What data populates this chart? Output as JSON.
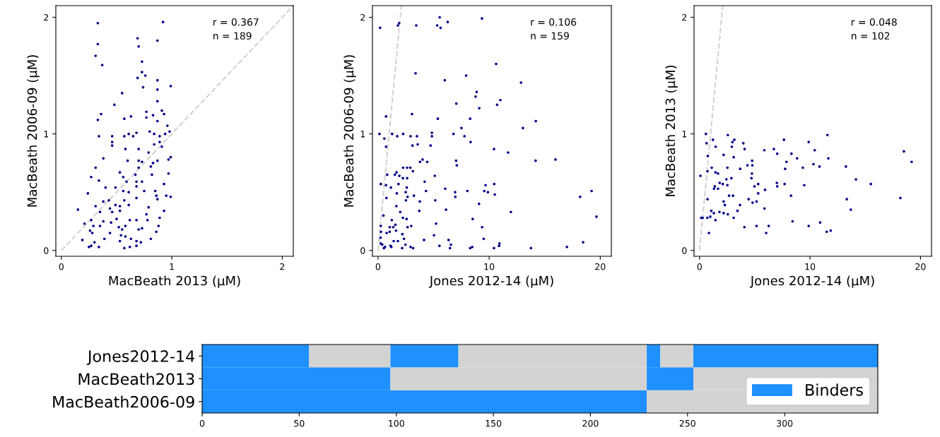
{
  "chart_data": [
    {
      "type": "scatter",
      "xlabel": "MacBeath 2013 (μM)",
      "ylabel": "MacBeath 2006-09 (μM)",
      "xlim": [
        -0.05,
        2.1
      ],
      "ylim": [
        -0.05,
        2.1
      ],
      "xticks": [
        0,
        1,
        2
      ],
      "yticks": [
        0,
        1,
        2
      ],
      "grid": false,
      "annotations": [
        "r = 0.367",
        "n = 189"
      ],
      "series": [
        {
          "type": "scatter",
          "marker": "circle",
          "color": "#00008b",
          "x": [
            0.33,
            0.92,
            0.33,
            0.69,
            0.87,
            0.7,
            0.31,
            0.37,
            0.73,
            0.73,
            0.69,
            0.76,
            0.87,
            0.99,
            0.74,
            0.87,
            0.55,
            0.48,
            0.87,
            0.36,
            0.33,
            0.57,
            0.63,
            0.77,
            0.77,
            0.83,
            0.91,
            0.93,
            0.87,
            0.96,
            0.34,
            0.46,
            0.46,
            0.46,
            0.57,
            0.61,
            0.65,
            0.68,
            0.8,
            0.84,
            0.89,
            0.94,
            0.98,
            0.89,
            0.84,
            0.7,
            0.58,
            0.79,
            0.91,
            0.38,
            0.6,
            0.7,
            0.73,
            0.83,
            0.87,
            0.97,
            0.99,
            0.31,
            0.81,
            0.7,
            0.53,
            0.82,
            0.97,
            0.67,
            0.27,
            0.34,
            0.56,
            0.59,
            0.68,
            0.73,
            0.4,
            0.49,
            0.68,
            0.93,
            0.24,
            0.56,
            0.61,
            0.75,
            0.85,
            0.86,
            0.95,
            0.99,
            0.68,
            0.57,
            0.38,
            0.43,
            0.87,
            0.15,
            0.31,
            0.49,
            0.53,
            0.61,
            0.79,
            0.35,
            0.44,
            0.46,
            0.93,
            0.53,
            0.77,
            0.5,
            0.62,
            0.68,
            0.78,
            0.89,
            0.21,
            0.27,
            0.38,
            0.45,
            0.29,
            0.35,
            0.52,
            0.58,
            0.73,
            0.88,
            0.26,
            0.44,
            0.55,
            0.7,
            0.86,
            0.28,
            0.54,
            0.19,
            0.3,
            0.39,
            0.53,
            0.58,
            0.63,
            0.68,
            0.81,
            0.25,
            0.27,
            0.34,
            0.57,
            0.62,
            0.68,
            0.72
          ],
          "values": [
            1.95,
            1.96,
            1.77,
            1.82,
            1.8,
            1.75,
            1.67,
            1.59,
            1.62,
            1.53,
            1.48,
            1.5,
            1.46,
            1.41,
            1.4,
            1.38,
            1.35,
            1.25,
            1.28,
            1.17,
            1.12,
            1.13,
            1.15,
            1.19,
            1.14,
            1.16,
            1.2,
            1.17,
            1.11,
            1.07,
            0.98,
            0.98,
            0.93,
            0.9,
            0.98,
            1.0,
            0.98,
            1.01,
            1.02,
            1.0,
            0.98,
            1.0,
            1.02,
            0.93,
            0.91,
            0.87,
            0.87,
            0.84,
            0.89,
            0.79,
            0.77,
            0.77,
            0.76,
            0.75,
            0.77,
            0.78,
            0.8,
            0.71,
            0.72,
            0.71,
            0.67,
            0.65,
            0.66,
            0.65,
            0.63,
            0.6,
            0.63,
            0.59,
            0.59,
            0.59,
            0.54,
            0.54,
            0.55,
            0.57,
            0.49,
            0.51,
            0.5,
            0.51,
            0.51,
            0.47,
            0.47,
            0.46,
            0.45,
            0.43,
            0.42,
            0.43,
            0.44,
            0.35,
            0.38,
            0.39,
            0.38,
            0.39,
            0.37,
            0.33,
            0.36,
            0.33,
            0.34,
            0.34,
            0.31,
            0.27,
            0.26,
            0.26,
            0.26,
            0.28,
            0.23,
            0.26,
            0.25,
            0.24,
            0.21,
            0.21,
            0.2,
            0.21,
            0.19,
            0.21,
            0.17,
            0.15,
            0.18,
            0.18,
            0.16,
            0.15,
            0.13,
            0.09,
            0.07,
            0.1,
            0.08,
            0.12,
            0.1,
            0.08,
            0.1,
            0.03,
            0.04,
            0.03,
            0.02,
            0.03,
            0.04,
            0.07
          ]
        },
        {
          "type": "line",
          "color": "#d3d3d3",
          "line_style": "dashed",
          "x": [
            0,
            2.1
          ],
          "values": [
            0,
            2.1
          ]
        }
      ]
    },
    {
      "type": "scatter",
      "xlabel": "Jones 2012-14 (μM)",
      "ylabel": "MacBeath 2006-09 (μM)",
      "xlim": [
        -0.5,
        21
      ],
      "ylim": [
        -0.05,
        2.1
      ],
      "xticks": [
        0,
        10,
        20
      ],
      "yticks": [
        0,
        1,
        2
      ],
      "grid": false,
      "annotations": [
        "r = 0.106",
        "n = 159"
      ],
      "series": [
        {
          "type": "scatter",
          "marker": "circle",
          "color": "#00008b",
          "x": [
            0.19,
            1.79,
            1.9,
            3.44,
            5.55,
            5.32,
            5.63,
            6.27,
            9.35,
            10.63,
            3.38,
            6.01,
            7.93,
            12.87,
            8.88,
            8.78,
            7.05,
            9.11,
            10.72,
            11.01,
            0.72,
            3.06,
            5.38,
            8.29,
            14.2,
            13.04,
            7.51,
            0.13,
            0.57,
            0.72,
            1.27,
            1.73,
            2.26,
            2.93,
            3.5,
            3.1,
            3.57,
            4.85,
            4.85,
            4.73,
            6.79,
            7.78,
            8.33,
            10.44,
            11.71,
            14.18,
            15.97,
            7.03,
            7.09,
            3.78,
            4.01,
            4.43,
            2.26,
            2.62,
            2.91,
            3.14,
            0.82,
            1.67,
            1.52,
            1.92,
            2.24,
            2.62,
            5.11,
            0.25,
            0.72,
            1.16,
            1.84,
            4.2,
            2.59,
            2.49,
            1.69,
            2.66,
            3.23,
            4.32,
            6.05,
            6.94,
            6.96,
            8.04,
            9.56,
            9.68,
            9.89,
            10.46,
            10.51,
            0.76,
            2.51,
            3.76,
            5.15,
            1.65,
            3.71,
            6.12,
            9.09,
            11.96,
            18.19,
            19.22,
            19.66,
            2.0,
            2.24,
            2.57,
            0.49,
            0.25,
            1.24,
            1.05,
            1.37,
            1.56,
            2.66,
            2.99,
            5.23,
            8.52,
            9.37,
            0.27,
            0.78,
            1.05,
            1.62,
            2.19,
            2.34,
            5.04,
            9.51,
            0.23,
            1.41,
            1.79,
            4.14,
            6.35,
            18.46,
            17.0,
            0.25,
            0.38,
            0.63,
            1.12,
            1.2,
            0.53,
            2.17,
            2.47,
            2.93,
            3.16,
            5.53,
            6.48,
            6.56,
            8.29,
            8.48,
            10.44,
            10.89,
            10.93,
            13.76
          ],
          "values": [
            1.91,
            1.93,
            1.95,
            1.93,
            2.0,
            1.93,
            1.91,
            1.96,
            1.99,
            1.6,
            1.52,
            1.46,
            1.5,
            1.44,
            1.36,
            1.32,
            1.26,
            1.22,
            1.25,
            1.29,
            1.15,
            1.17,
            1.13,
            1.13,
            1.11,
            1.05,
            1.05,
            1.0,
            0.96,
            0.89,
            1.0,
            0.98,
            1.0,
            0.98,
            0.98,
            0.9,
            0.91,
            1.01,
            0.98,
            0.9,
            1.0,
            0.98,
            0.93,
            0.87,
            0.84,
            0.77,
            0.78,
            0.77,
            0.73,
            0.76,
            0.78,
            0.76,
            0.71,
            0.71,
            0.71,
            0.68,
            0.65,
            0.67,
            0.65,
            0.64,
            0.62,
            0.62,
            0.64,
            0.57,
            0.56,
            0.54,
            0.57,
            0.59,
            0.54,
            0.5,
            0.49,
            0.46,
            0.47,
            0.51,
            0.53,
            0.5,
            0.46,
            0.51,
            0.51,
            0.56,
            0.5,
            0.57,
            0.48,
            0.45,
            0.43,
            0.42,
            0.43,
            0.38,
            0.34,
            0.35,
            0.4,
            0.33,
            0.46,
            0.51,
            0.29,
            0.33,
            0.28,
            0.27,
            0.3,
            0.21,
            0.26,
            0.2,
            0.2,
            0.22,
            0.2,
            0.21,
            0.23,
            0.27,
            0.2,
            0.16,
            0.15,
            0.16,
            0.17,
            0.14,
            0.1,
            0.13,
            0.1,
            0.11,
            0.08,
            0.08,
            0.09,
            0.09,
            0.07,
            0.03,
            0.06,
            0.05,
            0.03,
            0.04,
            0.03,
            0.02,
            0.02,
            0.05,
            0.03,
            0.02,
            0.04,
            0.02,
            0.05,
            0.02,
            0.03,
            0.02,
            0.04,
            0.06,
            0.02
          ]
        },
        {
          "type": "line",
          "color": "#d3d3d3",
          "line_style": "dashed",
          "x": [
            0,
            2.1
          ],
          "values": [
            0,
            2.1
          ]
        }
      ]
    },
    {
      "type": "scatter",
      "xlabel": "Jones 2012-14 (μM)",
      "ylabel": "MacBeath 2013 (μM)",
      "xlim": [
        -0.5,
        21
      ],
      "ylim": [
        -0.05,
        2.1
      ],
      "xticks": [
        0,
        10,
        20
      ],
      "yticks": [
        0,
        1,
        2
      ],
      "grid": false,
      "annotations": [
        "r = 0.048",
        "n = 102"
      ],
      "series": [
        {
          "type": "scatter",
          "marker": "circle",
          "color": "#00008b",
          "x": [
            0.57,
            2.56,
            11.58,
            0.63,
            1.21,
            1.46,
            2.98,
            3.15,
            2.92,
            3.96,
            4.08,
            5.86,
            6.73,
            7.03,
            7.64,
            8.32,
            9.88,
            10.43,
            18.5,
            0.74,
            2.18,
            3.09,
            4.76,
            7.87,
            8.83,
            11.66,
            19.2,
            0.72,
            1.1,
            1.44,
            1.67,
            2.52,
            3.68,
            4.34,
            4.78,
            7.75,
            9.35,
            10.31,
            10.86,
            13.25,
            0.08,
            1.82,
            2.1,
            2.43,
            2.52,
            2.88,
            1.38,
            1.31,
            1.67,
            4.74,
            4.7,
            4.97,
            5.31,
            5.31,
            5.93,
            7.0,
            7.03,
            7.7,
            9.48,
            14.16,
            15.51,
            0.72,
            2.18,
            2.29,
            2.67,
            3.03,
            4.44,
            4.8,
            5.16,
            5.88,
            8.28,
            13.33,
            13.69,
            18.18,
            1.06,
            1.29,
            1.8,
            2.18,
            2.56,
            3.43,
            3.66,
            0.15,
            0.28,
            0.7,
            0.97,
            1.44,
            3.09,
            0.85,
            4.06,
            5.16,
            6.03,
            6.26,
            8.42,
            9.88,
            10.92,
            11.51,
            11.87
          ],
          "values": [
            1.0,
            0.99,
            0.99,
            0.92,
            0.95,
            0.89,
            0.93,
            0.95,
            0.89,
            0.92,
            0.87,
            0.86,
            0.87,
            0.83,
            0.95,
            0.83,
            0.93,
            0.86,
            0.85,
            0.81,
            0.82,
            0.8,
            0.77,
            0.76,
            0.79,
            0.79,
            0.76,
            0.68,
            0.71,
            0.67,
            0.66,
            0.71,
            0.7,
            0.73,
            0.73,
            0.7,
            0.71,
            0.74,
            0.72,
            0.72,
            0.64,
            0.58,
            0.57,
            0.61,
            0.56,
            0.62,
            0.55,
            0.53,
            0.53,
            0.66,
            0.62,
            0.55,
            0.57,
            0.49,
            0.52,
            0.58,
            0.55,
            0.57,
            0.56,
            0.61,
            0.57,
            0.44,
            0.42,
            0.39,
            0.47,
            0.47,
            0.44,
            0.41,
            0.42,
            0.36,
            0.47,
            0.44,
            0.35,
            0.45,
            0.34,
            0.32,
            0.33,
            0.32,
            0.31,
            0.34,
            0.39,
            0.28,
            0.28,
            0.28,
            0.29,
            0.26,
            0.28,
            0.15,
            0.2,
            0.21,
            0.15,
            0.21,
            0.25,
            0.21,
            0.24,
            0.16,
            0.17
          ]
        },
        {
          "type": "line",
          "color": "#d3d3d3",
          "line_style": "dashed",
          "x": [
            0,
            2.1
          ],
          "values": [
            0,
            2.1
          ]
        }
      ]
    },
    {
      "type": "bar",
      "orientation": "horizontal",
      "categories": [
        "Jones2012-14",
        "MacBeath2013",
        "MacBeath2006-09"
      ],
      "xlim": [
        0,
        348
      ],
      "xticks": [
        0,
        50,
        100,
        150,
        200,
        250,
        300
      ],
      "legend": "bottom right",
      "series": [
        {
          "name": "Binders",
          "color": "#1e90ff",
          "base": [
            0,
            0,
            0
          ],
          "values": [
            55,
            97,
            229
          ]
        },
        {
          "color": "#d3d3d3",
          "base": [
            55,
            97,
            229
          ],
          "values": [
            42,
            132,
            119
          ]
        },
        {
          "color": "#1e90ff",
          "base": [
            97,
            229,
            null
          ],
          "values": [
            35,
            24,
            null
          ]
        },
        {
          "color": "#d3d3d3",
          "base": [
            132,
            253,
            null
          ],
          "values": [
            97,
            95,
            null
          ]
        },
        {
          "color": "#1e90ff",
          "base": [
            229,
            null,
            null
          ],
          "values": [
            7,
            null,
            null
          ]
        },
        {
          "color": "#d3d3d3",
          "base": [
            236,
            null,
            null
          ],
          "values": [
            17,
            null,
            null
          ]
        },
        {
          "color": "#1e90ff",
          "base": [
            253,
            null,
            null
          ],
          "values": [
            95,
            null,
            null
          ]
        }
      ]
    }
  ]
}
